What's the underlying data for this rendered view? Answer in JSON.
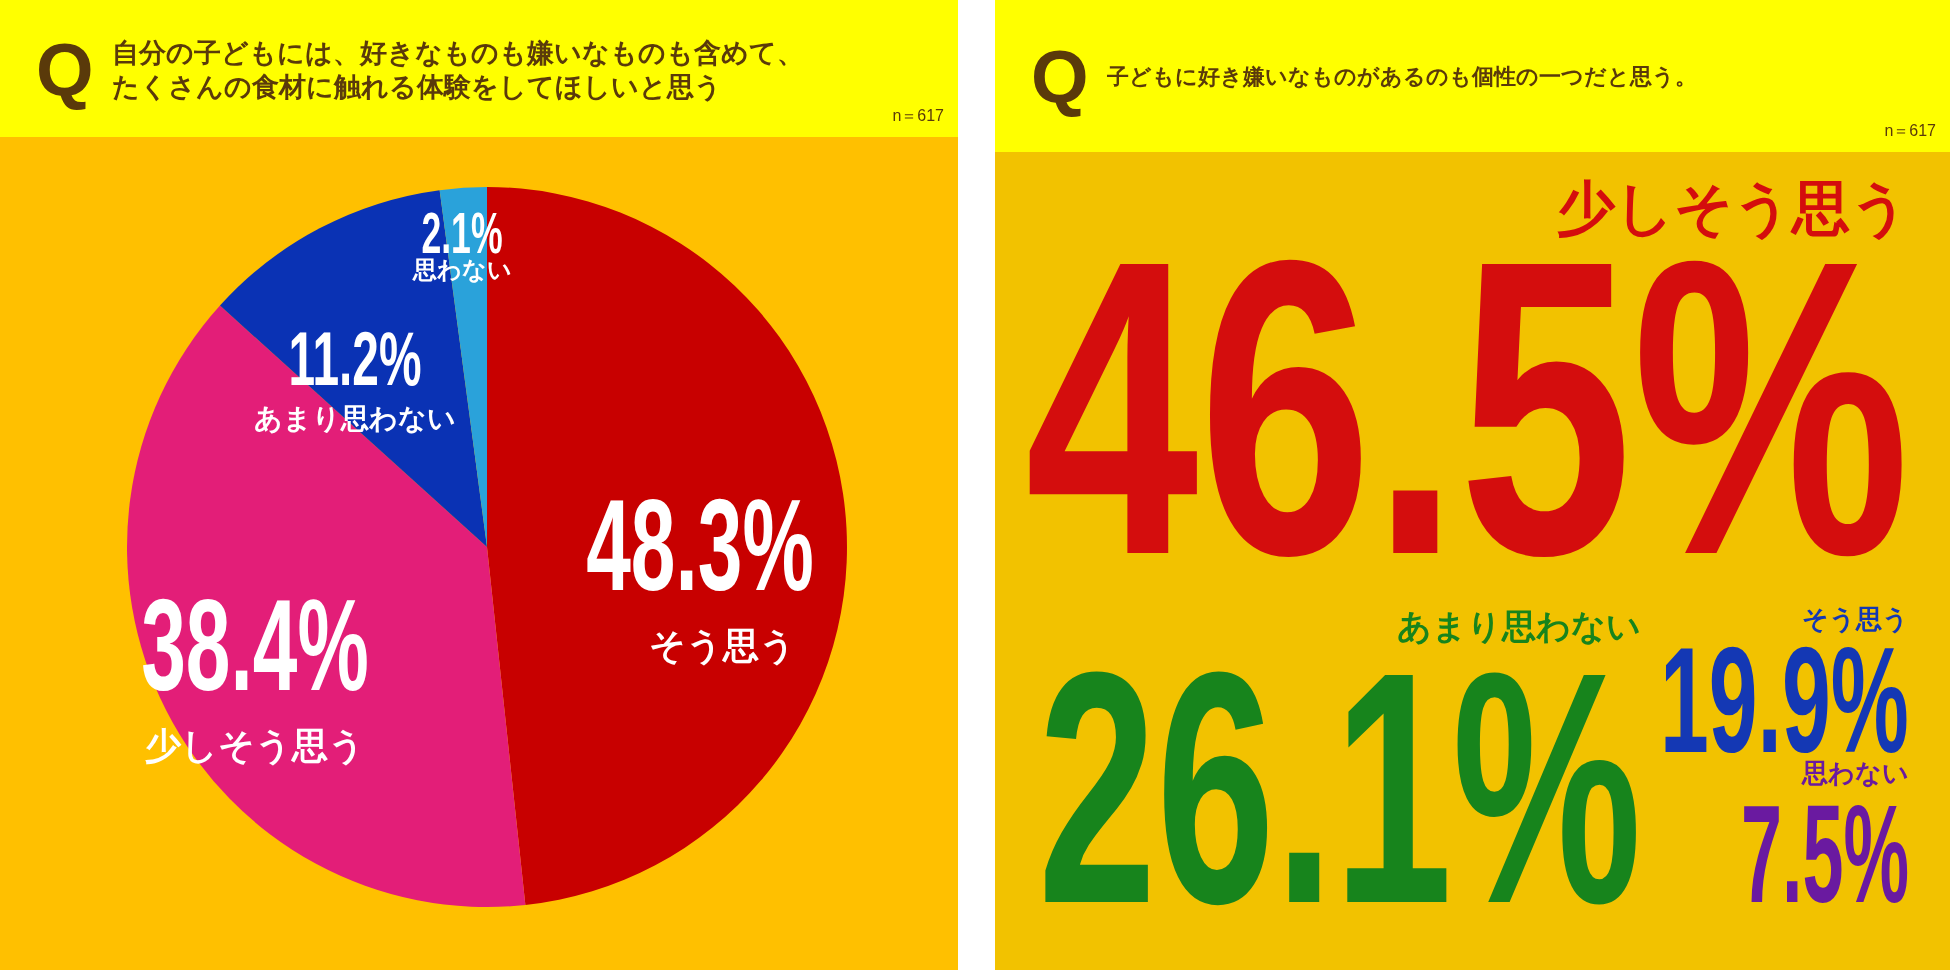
{
  "chart_data": [
    {
      "type": "pie",
      "title": "自分の子どもには、好きなものも嫌いなものも含めて、たくさんの食材に触れる体験をしてほしいと思う",
      "annotations": [
        "Q",
        "n＝617"
      ],
      "categories": [
        "そう思う",
        "少しそう思う",
        "あまり思わない",
        "思わない"
      ],
      "values": [
        48.3,
        38.4,
        11.2,
        2.1
      ],
      "value_labels": [
        "48.3%",
        "38.4%",
        "11.2%",
        "2.1%"
      ],
      "colors": [
        "#c80000",
        "#e31e78",
        "#0a32b4",
        "#2aa2da"
      ]
    },
    {
      "type": "other",
      "title": "子どもに好き嫌いなものがあるのも個性の一つだと思う。",
      "annotations": [
        "Q",
        "n＝617"
      ],
      "categories": [
        "少しそう思う",
        "あまり思わない",
        "そう思う",
        "思わない"
      ],
      "values": [
        46.5,
        26.1,
        19.9,
        7.5
      ],
      "value_labels": [
        "46.5%",
        "26.1%",
        "19.9%",
        "7.5%"
      ],
      "colors": [
        "#d40d0d",
        "#17841c",
        "#1438b4",
        "#6a1aa0"
      ]
    }
  ]
}
